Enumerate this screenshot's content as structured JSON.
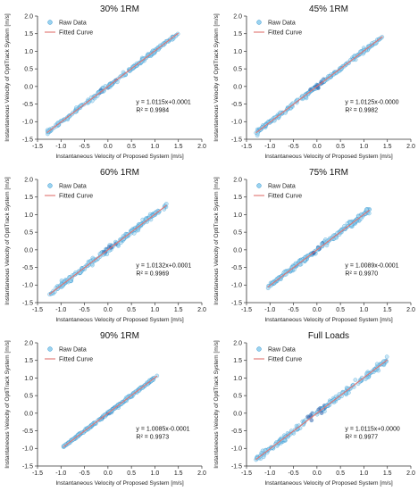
{
  "chart_data": [
    {
      "type": "scatter",
      "title": "30% 1RM",
      "xlabel": "Instantaneous Velocity of Proposed System [m/s]",
      "ylabel": "Instantaneous Velocity of OptiTrack System [m/s]",
      "xlim": [
        -1.5,
        2.0
      ],
      "ylim": [
        -1.5,
        2.0
      ],
      "xticks": [
        "-1.5",
        "-1.0",
        "-0.5",
        "0.0",
        "0.5",
        "1.0",
        "1.5",
        "2.0"
      ],
      "yticks": [
        "-1.5",
        "-1.0",
        "-0.5",
        "0.0",
        "0.5",
        "1.0",
        "1.5",
        "2.0"
      ],
      "legend": [
        "Raw Data",
        "Fitted Curve"
      ],
      "legend_position": "top-left",
      "fit": {
        "slope": 1.0115,
        "intercept": 0.0001
      },
      "equation": "y = 1.0115x+0.0001",
      "r2": "R² = 0.9984",
      "data_range": [
        -1.3,
        1.5
      ],
      "spread": 0.03
    },
    {
      "type": "scatter",
      "title": "45% 1RM",
      "xlabel": "Instantaneous Velocity of Proposed System [m/s]",
      "ylabel": "Instantaneous Velocity of OptiTrack System [m/s]",
      "xlim": [
        -1.5,
        2.0
      ],
      "ylim": [
        -1.5,
        2.0
      ],
      "xticks": [
        "-1.5",
        "-1.0",
        "-0.5",
        "0.0",
        "0.5",
        "1.0",
        "1.5",
        "2.0"
      ],
      "yticks": [
        "-1.5",
        "-1.0",
        "-0.5",
        "0.0",
        "0.5",
        "1.0",
        "1.5",
        "2.0"
      ],
      "legend": [
        "Raw Data",
        "Fitted Curve"
      ],
      "legend_position": "top-left",
      "fit": {
        "slope": 1.0125,
        "intercept": 0.0
      },
      "equation": "y = 1.0125x-0.0000",
      "r2": "R² = 0.9982",
      "data_range": [
        -1.3,
        1.4
      ],
      "spread": 0.03
    },
    {
      "type": "scatter",
      "title": "60% 1RM",
      "xlabel": "Instantaneous Velocity of Proposed System [m/s]",
      "ylabel": "Instantaneous Velocity of OptiTrack System [m/s]",
      "xlim": [
        -1.5,
        2.0
      ],
      "ylim": [
        -1.5,
        2.0
      ],
      "xticks": [
        "-1.5",
        "-1.0",
        "-0.5",
        "0.0",
        "0.5",
        "1.0",
        "1.5",
        "2.0"
      ],
      "yticks": [
        "-1.5",
        "-1.0",
        "-0.5",
        "0.0",
        "0.5",
        "1.0",
        "1.5",
        "2.0"
      ],
      "legend": [
        "Raw Data",
        "Fitted Curve"
      ],
      "legend_position": "top-left",
      "fit": {
        "slope": 1.0132,
        "intercept": 0.0001
      },
      "equation": "y = 1.0132x+0.0001",
      "r2": "R² = 0.9969",
      "data_range": [
        -1.25,
        1.25
      ],
      "spread": 0.04
    },
    {
      "type": "scatter",
      "title": "75% 1RM",
      "xlabel": "Instantaneous Velocity of Proposed System [m/s]",
      "ylabel": "Instantaneous Velocity of OptiTrack System [m/s]",
      "xlim": [
        -1.5,
        2.0
      ],
      "ylim": [
        -1.5,
        2.0
      ],
      "xticks": [
        "-1.5",
        "-1.0",
        "-0.5",
        "0.0",
        "0.5",
        "1.0",
        "1.5",
        "2.0"
      ],
      "yticks": [
        "-1.5",
        "-1.0",
        "-0.5",
        "0.0",
        "0.5",
        "1.0",
        "1.5",
        "2.0"
      ],
      "legend": [
        "Raw Data",
        "Fitted Curve"
      ],
      "legend_position": "top-left",
      "fit": {
        "slope": 1.0089,
        "intercept": -0.0001
      },
      "equation": "y = 1.0089x-0.0001",
      "r2": "R² = 0.9970",
      "data_range": [
        -1.05,
        1.12
      ],
      "spread": 0.04
    },
    {
      "type": "scatter",
      "title": "90% 1RM",
      "xlabel": "Instantaneous Velocity of Proposed System [m/s]",
      "ylabel": "Instantaneous Velocity of OptiTrack System [m/s]",
      "xlim": [
        -1.5,
        2.0
      ],
      "ylim": [
        -1.5,
        2.0
      ],
      "xticks": [
        "-1.5",
        "-1.0",
        "-0.5",
        "0.0",
        "0.5",
        "1.0",
        "1.5",
        "2.0"
      ],
      "yticks": [
        "-1.5",
        "-1.0",
        "-0.5",
        "0.0",
        "0.5",
        "1.0",
        "1.5",
        "2.0"
      ],
      "legend": [
        "Raw Data",
        "Fitted Curve"
      ],
      "legend_position": "top-left",
      "fit": {
        "slope": 1.0085,
        "intercept": -0.0001
      },
      "equation": "y = 1.0085x-0.0001",
      "r2": "R² = 0.9973",
      "data_range": [
        -0.95,
        1.05
      ],
      "spread": 0.02
    },
    {
      "type": "scatter",
      "title": "Full Loads",
      "xlabel": "Instantaneous Velocity of Proposed System [m/s]",
      "ylabel": "Instantaneous Velocity of OptiTrack System [m/s]",
      "xlim": [
        -1.5,
        2.0
      ],
      "ylim": [
        -1.5,
        2.0
      ],
      "xticks": [
        "-1.5",
        "-1.0",
        "-0.5",
        "0.0",
        "0.5",
        "1.0",
        "1.5",
        "2.0"
      ],
      "yticks": [
        "-1.5",
        "-1.0",
        "-0.5",
        "0.0",
        "0.5",
        "1.0",
        "1.5",
        "2.0"
      ],
      "legend": [
        "Raw Data",
        "Fitted Curve"
      ],
      "legend_position": "top-left",
      "fit": {
        "slope": 1.0115,
        "intercept": 0.0
      },
      "equation": "y = 1.0115x+0.0000",
      "r2": "R² = 0.9977",
      "data_range": [
        -1.3,
        1.5
      ],
      "spread": 0.045
    }
  ],
  "colors": {
    "raw_fill": "#9ad3ef",
    "raw_edge": "#2b8fcf",
    "raw_dense": "#3a5ea8",
    "fit_line": "#e0736f",
    "axis": "#333333"
  }
}
